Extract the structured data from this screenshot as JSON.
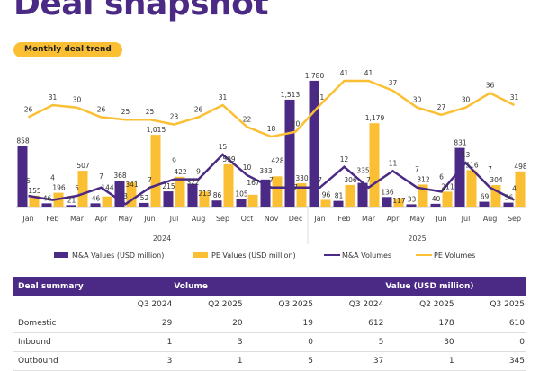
{
  "title": "Deal snapshot",
  "pill": "Monthly deal trend",
  "chart_data": {
    "type": "bar",
    "categories": [
      "Jan",
      "Feb",
      "Mar",
      "Apr",
      "May",
      "Jun",
      "Jul",
      "Aug",
      "Sep",
      "Oct",
      "Nov",
      "Dec",
      "Jan",
      "Feb",
      "Mar",
      "Apr",
      "May",
      "Jun",
      "Jul",
      "Aug",
      "Sep"
    ],
    "year_groups": [
      {
        "label": "2024",
        "count": 12
      },
      {
        "label": "2025",
        "count": 9
      }
    ],
    "series": [
      {
        "name": "M&A Values (USD million)",
        "kind": "bar",
        "color": "#4B2A85",
        "values": [
          858,
          46,
          21,
          46,
          368,
          52,
          215,
          322,
          86,
          105,
          383,
          1513,
          1780,
          81,
          335,
          136,
          33,
          40,
          831,
          69,
          56
        ]
      },
      {
        "name": "PE Values (USD million)",
        "kind": "bar",
        "color": "#FBBF33",
        "values": [
          155,
          196,
          507,
          144,
          341,
          1015,
          422,
          213,
          599,
          167,
          428,
          330,
          96,
          306,
          1179,
          117,
          312,
          211,
          516,
          304,
          498
        ]
      },
      {
        "name": "M&A Volumes",
        "kind": "line",
        "color": "#4B2A85",
        "values": [
          5,
          4,
          5,
          7,
          3,
          7,
          9,
          9,
          15,
          10,
          7,
          7,
          7,
          12,
          7,
          11,
          7,
          6,
          13,
          7,
          4
        ]
      },
      {
        "name": "PE Volumes",
        "kind": "line",
        "color": "#FBBF33",
        "values": [
          26,
          31,
          30,
          26,
          25,
          25,
          23,
          26,
          31,
          22,
          18,
          20,
          31,
          41,
          41,
          37,
          30,
          27,
          30,
          36,
          31
        ]
      }
    ],
    "legend": "bottom"
  },
  "table": {
    "header": [
      "Deal summary",
      "Volume",
      "",
      "",
      "Value (USD million)"
    ],
    "subheader": [
      "",
      "Q3 2024",
      "Q2 2025",
      "Q3 2025",
      "Q3 2024",
      "Q2 2025",
      "Q3 2025"
    ],
    "rows": [
      [
        "Domestic",
        "29",
        "20",
        "19",
        "612",
        "178",
        "610"
      ],
      [
        "Inbound",
        "1",
        "3",
        "0",
        "5",
        "30",
        "0"
      ],
      [
        "Outbound",
        "3",
        "1",
        "5",
        "37",
        "1",
        "345"
      ]
    ]
  }
}
